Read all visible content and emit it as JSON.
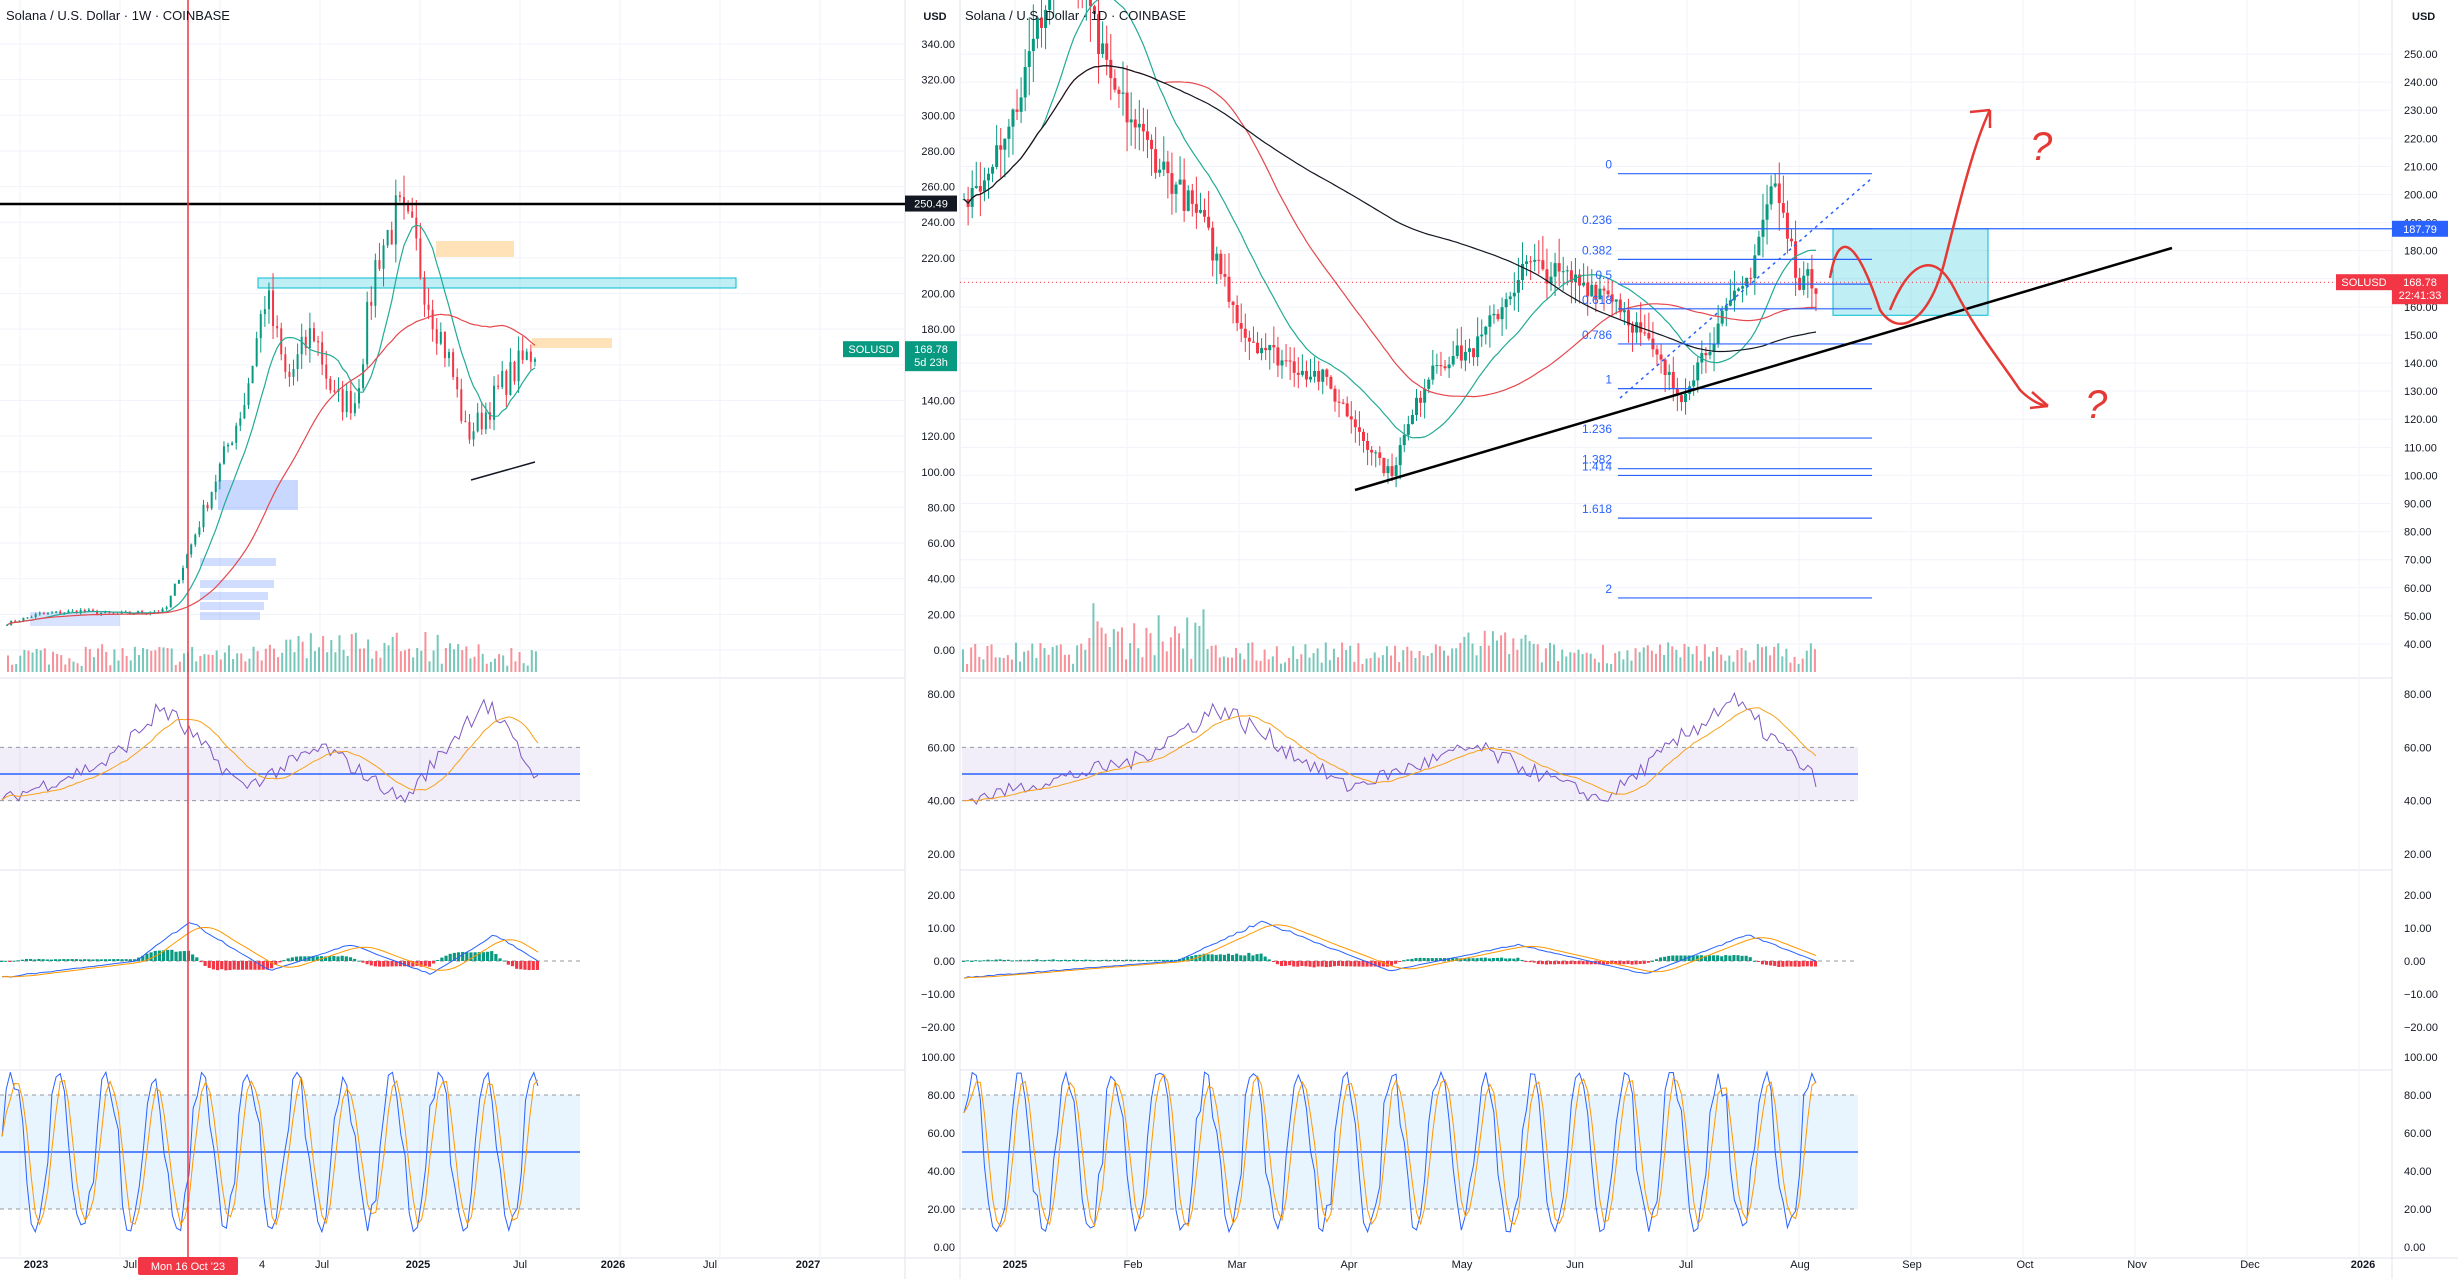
{
  "left_chart": {
    "title": "Solana / U.S. Dollar · 1W · COINBASE",
    "price_ticks": [
      "340.00",
      "320.00",
      "300.00",
      "280.00",
      "260.00",
      "240.00",
      "220.00",
      "200.00",
      "180.00",
      "160.00",
      "140.00",
      "120.00",
      "100.00",
      "80.00",
      "60.00",
      "40.00",
      "20.00",
      "0.00"
    ],
    "rsi_ticks": [
      "80.00",
      "60.00",
      "40.00",
      "20.00"
    ],
    "macd_ticks": [
      "20.00",
      "10.00",
      "0.00",
      "−10.00",
      "−20.00"
    ],
    "stoch_ticks": [
      "100.00",
      "80.00",
      "60.00",
      "40.00",
      "20.00",
      "0.00"
    ],
    "time_ticks": [
      "2023",
      "Jul",
      "Mon 16 Oct '23",
      "4",
      "Jul",
      "2025",
      "Jul",
      "2026",
      "Jul",
      "2027"
    ],
    "hline_label": "250.49",
    "symbol_tag": "SOLUSD",
    "price_tag": "168.78",
    "countdown": "5d 23h",
    "cursor_label": "Mon 16 Oct '23"
  },
  "right_chart": {
    "title": "Solana / U.S. Dollar · 1D · COINBASE",
    "currency_left": "USD",
    "currency_right": "USD",
    "price_ticks_right": [
      "250.00",
      "240.00",
      "230.00",
      "220.00",
      "210.00",
      "200.00",
      "190.00",
      "180.00",
      "170.00",
      "160.00",
      "150.00",
      "140.00",
      "130.00",
      "120.00",
      "110.00",
      "100.00",
      "90.00",
      "80.00",
      "70.00",
      "60.00",
      "50.00",
      "40.00"
    ],
    "rsi_ticks": [
      "80.00",
      "60.00",
      "40.00",
      "20.00"
    ],
    "macd_ticks": [
      "20.00",
      "10.00",
      "0.00",
      "−10.00",
      "−20.00"
    ],
    "stoch_ticks": [
      "100.00",
      "80.00",
      "60.00",
      "40.00",
      "20.00",
      "0.00"
    ],
    "time_ticks": [
      "2025",
      "Feb",
      "Mar",
      "Apr",
      "May",
      "Jun",
      "Jul",
      "Aug",
      "Sep",
      "Oct",
      "Nov",
      "Dec",
      "2026"
    ],
    "fib_levels": [
      {
        "label": "0",
        "value": 207.4
      },
      {
        "label": "0.236",
        "value": 187.79
      },
      {
        "label": "0.382",
        "value": 176.9
      },
      {
        "label": "0.5",
        "value": 168.1
      },
      {
        "label": "0.618",
        "value": 159.3
      },
      {
        "label": "0.786",
        "value": 146.8
      },
      {
        "label": "1",
        "value": 130.9
      },
      {
        "label": "1.236",
        "value": 113.3
      },
      {
        "label": "1.382",
        "value": 102.4
      },
      {
        "label": "1.414",
        "value": 100.0
      },
      {
        "label": "1.618",
        "value": 84.8
      },
      {
        "label": "2",
        "value": 56.4
      }
    ],
    "level_tag": "187.79",
    "symbol_tag": "SOLUSD",
    "price_tag": "168.78",
    "countdown": "22:41:33",
    "annotation_marks": [
      "?",
      "?"
    ]
  },
  "colors": {
    "up": "#089981",
    "down": "#f23645",
    "ema_fast": "#22ab94",
    "ema_slow": "#e5484d",
    "sma200": "#131722",
    "rsi": "#7e57c2",
    "rsi_ma": "#f7a21b",
    "macd": "#2962ff",
    "signal": "#ff9800",
    "fib": "#2962ff",
    "zone": "#00bcd4",
    "drawing": "#e53935",
    "trendline": "#000000",
    "cursor": "#f23645"
  },
  "chart_data": [
    {
      "type": "line",
      "title": "Solana / U.S. Dollar · 1W · COINBASE",
      "x": [
        "2023-01",
        "2023-04",
        "2023-07",
        "2023-10",
        "2024-01",
        "2024-03",
        "2024-06",
        "2024-09",
        "2024-11",
        "2025-01",
        "2025-03",
        "2025-04",
        "2025-06",
        "2025-07"
      ],
      "series": [
        {
          "name": "SOLUSD",
          "values": [
            12,
            22,
            20,
            23,
            100,
            200,
            150,
            140,
            235,
            290,
            135,
            105,
            150,
            168.78
          ]
        }
      ],
      "ylim": [
        0,
        350
      ],
      "horizontal_level": 250.49
    },
    {
      "type": "line",
      "title": "Solana / U.S. Dollar · 1D · COINBASE",
      "x": [
        "2025-01-01",
        "2025-01-19",
        "2025-02-01",
        "2025-03-01",
        "2025-03-15",
        "2025-04-07",
        "2025-05-01",
        "2025-05-14",
        "2025-06-01",
        "2025-06-22",
        "2025-07-10",
        "2025-07-22",
        "2025-08-02",
        "2025-08-05"
      ],
      "series": [
        {
          "name": "SOLUSD",
          "values": [
            190,
            295,
            230,
            140,
            130,
            97,
            150,
            180,
            165,
            128,
            150,
            205,
            160,
            168.78
          ]
        }
      ],
      "ylim": [
        40,
        255
      ],
      "fib_retracement": {
        "high": 207.4,
        "low": 130.9
      }
    }
  ]
}
